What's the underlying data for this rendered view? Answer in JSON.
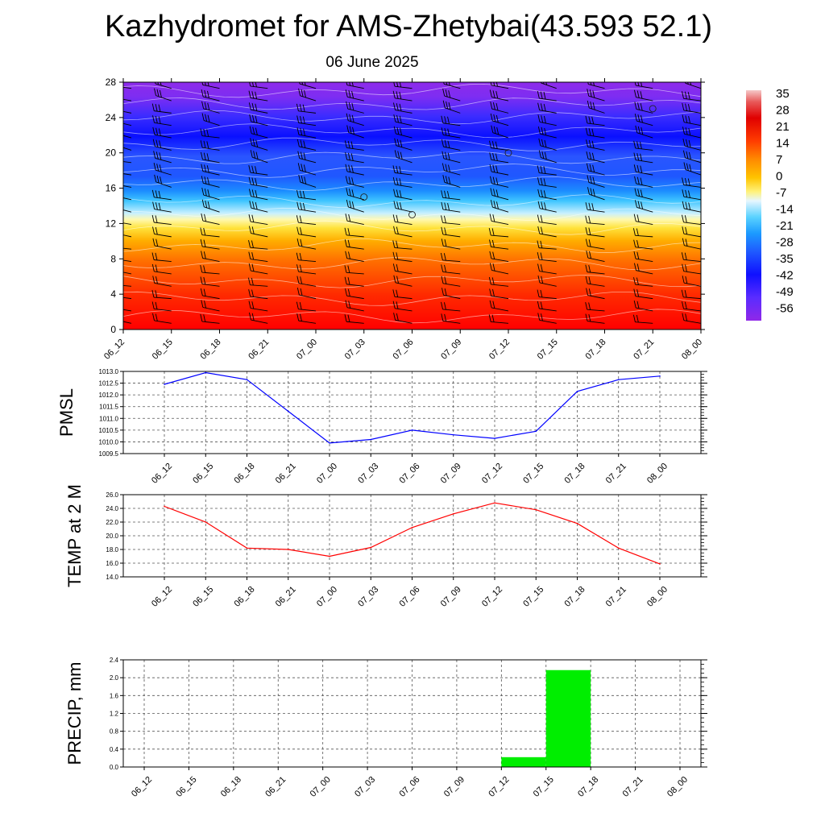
{
  "title": "Kazhydromet for AMS-Zhetybai(43.593 52.1)",
  "subtitle": "06 June 2025",
  "time_labels": [
    "06_12",
    "06_15",
    "06_18",
    "06_21",
    "07_00",
    "07_03",
    "07_06",
    "07_09",
    "07_12",
    "07_15",
    "07_18",
    "07_21",
    "08_00"
  ],
  "chart_data": [
    {
      "type": "heatmap",
      "title": "",
      "x": [
        "06_12",
        "06_15",
        "06_18",
        "06_21",
        "07_00",
        "07_03",
        "07_06",
        "07_09",
        "07_12",
        "07_15",
        "07_18",
        "07_21",
        "08_00"
      ],
      "y_ticks": [
        0,
        4,
        8,
        12,
        16,
        20,
        24,
        28
      ],
      "ylim": [
        0,
        28
      ],
      "colorbar_ticks": [
        35,
        28,
        21,
        14,
        7,
        0,
        -7,
        -14,
        -21,
        -28,
        -35,
        -42,
        -49,
        -56
      ],
      "colorbar_range": [
        -60,
        38
      ],
      "colors": {
        "warm": "#ff0000",
        "neutral": "#fff17a",
        "cold": "#0000ff",
        "top": "#8a2be2"
      },
      "wind_barbs": true
    },
    {
      "type": "line",
      "ylabel": "PMSL",
      "x": [
        "06_12",
        "06_15",
        "06_18",
        "06_21",
        "07_00",
        "07_03",
        "07_06",
        "07_09",
        "07_12",
        "07_15",
        "07_18",
        "07_21",
        "08_00"
      ],
      "values": [
        1012.45,
        1012.95,
        1012.65,
        1011.3,
        1009.95,
        1010.1,
        1010.5,
        1010.3,
        1010.15,
        1010.45,
        1012.15,
        1012.65,
        1012.8
      ],
      "ylim": [
        1009.5,
        1013.0
      ],
      "yticks": [
        "1013.0",
        "1012.5",
        "1012.0",
        "1011.5",
        "1011.0",
        "1010.5",
        "1010.0",
        "1009.5"
      ],
      "color": "#0000ff",
      "grid": true
    },
    {
      "type": "line",
      "ylabel": "TEMP at 2 M",
      "x": [
        "06_12",
        "06_15",
        "06_18",
        "06_21",
        "07_00",
        "07_03",
        "07_06",
        "07_09",
        "07_12",
        "07_15",
        "07_18",
        "07_21",
        "08_00"
      ],
      "values": [
        24.3,
        22.0,
        18.2,
        18.0,
        17.0,
        18.3,
        21.2,
        23.2,
        24.8,
        23.8,
        21.8,
        18.2,
        15.9
      ],
      "ylim": [
        14.0,
        26.0
      ],
      "yticks": [
        "26.0",
        "24.0",
        "22.0",
        "20.0",
        "18.0",
        "16.0",
        "14.0"
      ],
      "color": "#ff0000",
      "grid": true
    },
    {
      "type": "bar",
      "ylabel": "PRECIP, mm",
      "x": [
        "06_12",
        "06_15",
        "06_18",
        "06_21",
        "07_00",
        "07_03",
        "07_06",
        "07_09",
        "07_12",
        "07_15",
        "07_18",
        "07_21",
        "08_00"
      ],
      "values": [
        0,
        0,
        0,
        0,
        0,
        0,
        0,
        0,
        0.22,
        2.17,
        0,
        0,
        0
      ],
      "ylim": [
        0.0,
        2.4
      ],
      "yticks": [
        "2.4",
        "2.0",
        "1.6",
        "1.2",
        "0.8",
        "0.4",
        "0.0"
      ],
      "color": "#00ee00",
      "grid": true
    }
  ]
}
